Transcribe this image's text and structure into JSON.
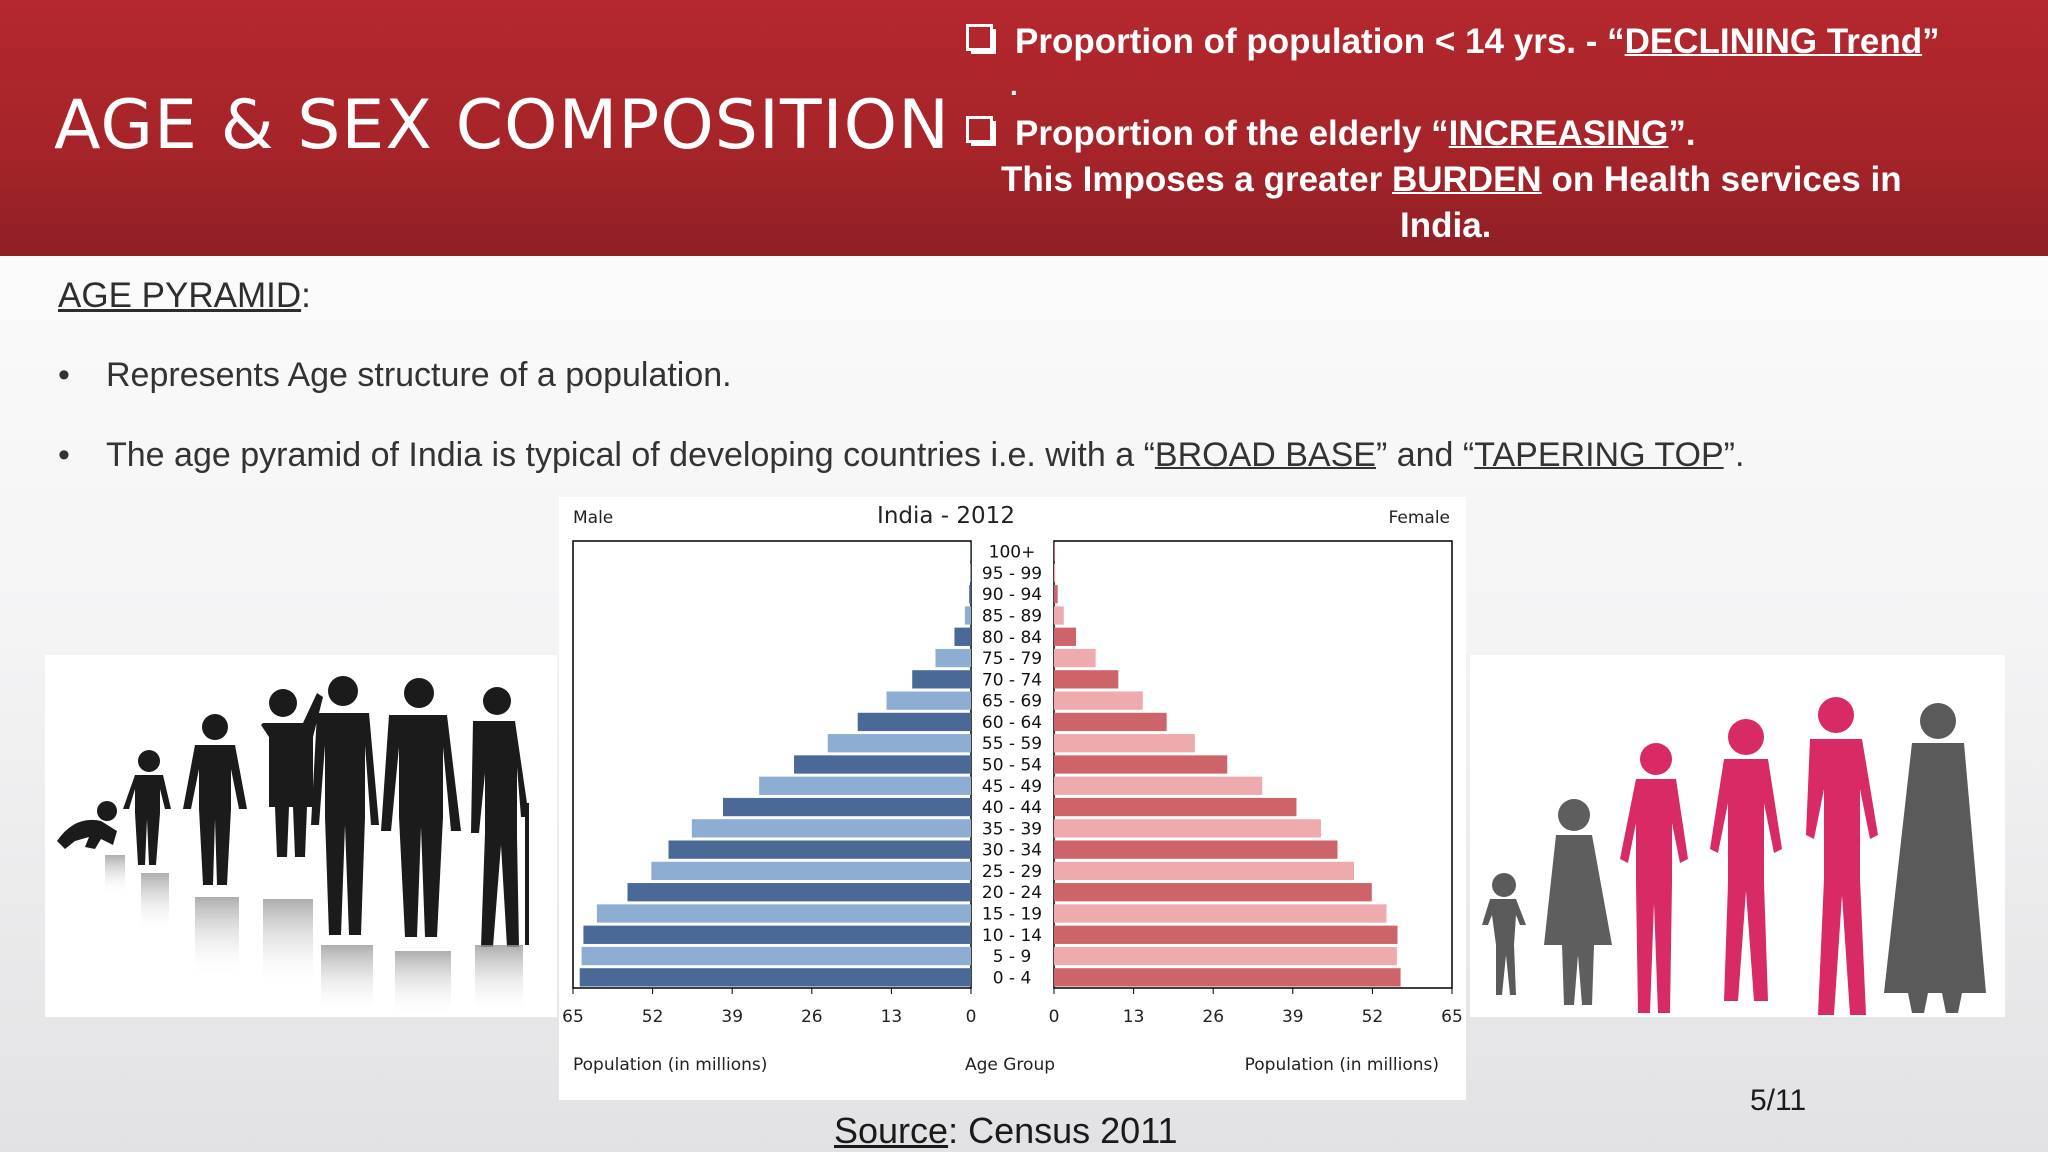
{
  "header": {
    "title": "AGE & SEX COMPOSITION",
    "bullet1_pre": "Proportion of population < 14 yrs.  - “",
    "bullet1_u": "DECLINING Trend",
    "bullet1_post": "”",
    "bullet1_cont": ".",
    "bullet2_pre": "Proportion of the elderly “",
    "bullet2_u": "INCREASING",
    "bullet2_post": "”.",
    "line3_pre": "This Imposes a greater ",
    "line3_u": "BURDEN",
    "line3_post": " on Health   services in",
    "line4": "India."
  },
  "body": {
    "section_title": "AGE PYRAMID",
    "section_colon": ":",
    "bullet_char": "•",
    "bullet1": "Represents Age structure of a population.",
    "bullet2_pre": "The age pyramid of India is typical of developing countries i.e. with a “",
    "bullet2_u1": "BROAD BASE",
    "bullet2_mid": "” and “",
    "bullet2_u2": "TAPERING TOP",
    "bullet2_post": "”."
  },
  "chart_data": {
    "type": "bar",
    "orientation": "horizontal-pyramid",
    "title": "India - 2012",
    "left_label": "Male",
    "right_label": "Female",
    "xlabel_left": "Population (in millions)",
    "xlabel_center": "Age Group",
    "xlabel_right": "Population (in millions)",
    "xlim": [
      0,
      65
    ],
    "ticks": [
      65,
      52,
      39,
      26,
      13,
      0
    ],
    "categories": [
      "100+",
      "95 - 99",
      "90 - 94",
      "85 - 89",
      "80 - 84",
      "75 - 79",
      "70 - 74",
      "65 - 69",
      "60 - 64",
      "55 - 59",
      "50 - 54",
      "45 - 49",
      "40 - 44",
      "35 - 39",
      "30 - 34",
      "25 - 29",
      "20 - 24",
      "15 - 19",
      "10 - 14",
      "5 - 9",
      "0 - 4"
    ],
    "series": [
      {
        "name": "Male",
        "values": [
          0.1,
          0.1,
          0.3,
          1.0,
          2.7,
          5.8,
          9.6,
          13.8,
          18.5,
          23.4,
          28.9,
          34.6,
          40.5,
          45.6,
          49.4,
          52.2,
          56.1,
          61.1,
          63.3,
          63.6,
          63.9
        ]
      },
      {
        "name": "Female",
        "values": [
          0.1,
          0.2,
          0.6,
          1.6,
          3.6,
          6.8,
          10.5,
          14.5,
          18.4,
          23.0,
          28.3,
          34.0,
          39.6,
          43.6,
          46.3,
          49.0,
          51.9,
          54.3,
          56.1,
          56.0,
          56.6
        ]
      }
    ],
    "colors": {
      "male_dark": "#4a6996",
      "male_light": "#8eadd3",
      "female_dark": "#cc6469",
      "female_light": "#eeaaac",
      "frame": "#000000"
    }
  },
  "images": {
    "left_icon": "male-ageing-silhouettes",
    "right_icon": "female-ageing-silhouettes"
  },
  "source": {
    "label": "Source",
    "rest": ": Census 2011"
  },
  "page_number": "5/11"
}
